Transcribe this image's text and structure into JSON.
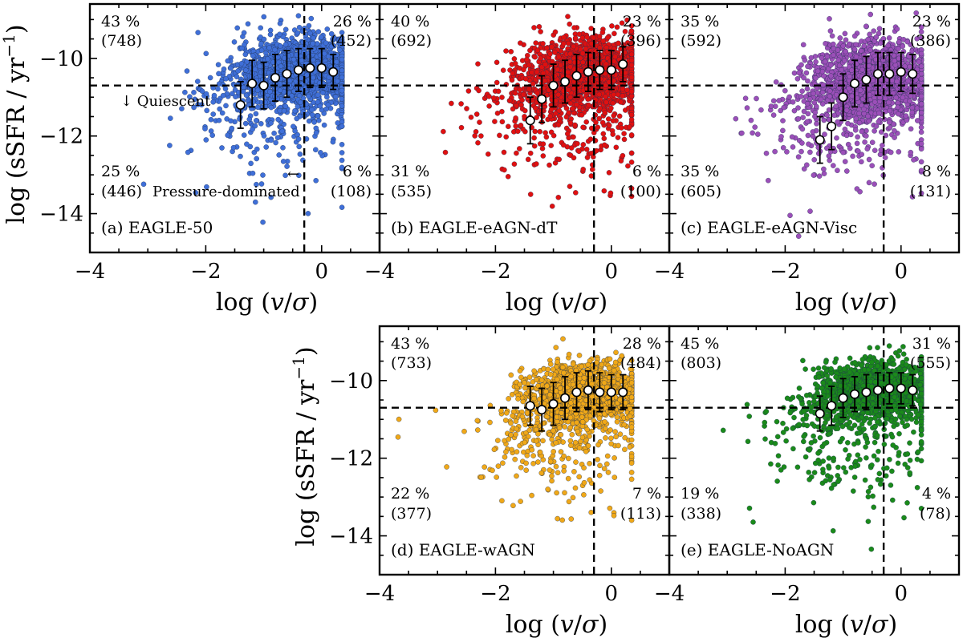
{
  "chart_data": [
    {
      "type": "scatter",
      "panel_label": "(a) EAGLE-50",
      "color": "#3f6fd8",
      "n_points": 1754,
      "xlabel": "log (v/σ)",
      "ylabel": "log (sSFR / yr⁻¹)",
      "xlim": [
        -4,
        1
      ],
      "ylim": [
        -15,
        -8.6
      ],
      "x_ticks": [
        -4,
        -2,
        0
      ],
      "y_ticks": [
        -10,
        -12,
        -14
      ],
      "quiescent_threshold": -10.7,
      "pressure_threshold": -0.3,
      "quadrants": {
        "top_left": {
          "pct": "43 %",
          "count": "(748)"
        },
        "top_right": {
          "pct": "26 %",
          "count": "(452)"
        },
        "bottom_left": {
          "pct": "25 %",
          "count": "(446)"
        },
        "bottom_right": {
          "pct": "6 %",
          "count": "(108)"
        }
      },
      "annotations": {
        "quiescent": "↓ Quiescent",
        "pressure": "← Pressure-dominated"
      },
      "medians": [
        {
          "x": -1.4,
          "y": -11.2,
          "err": 0.6
        },
        {
          "x": -1.2,
          "y": -10.65,
          "err": 0.6
        },
        {
          "x": -1.0,
          "y": -10.7,
          "err": 0.6
        },
        {
          "x": -0.8,
          "y": -10.5,
          "err": 0.6
        },
        {
          "x": -0.6,
          "y": -10.4,
          "err": 0.6
        },
        {
          "x": -0.4,
          "y": -10.3,
          "err": 0.55
        },
        {
          "x": -0.2,
          "y": -10.25,
          "err": 0.5
        },
        {
          "x": 0.0,
          "y": -10.25,
          "err": 0.5
        },
        {
          "x": 0.2,
          "y": -10.35,
          "err": 0.45
        }
      ],
      "cloud": {
        "x_center": -0.4,
        "x_spread": 0.55,
        "y_center": -10.25,
        "y_spread": 0.5
      }
    },
    {
      "type": "scatter",
      "panel_label": "(b) EAGLE-eAGN-dT",
      "color": "#e01010",
      "n_points": 1723,
      "xlabel": "log (v/σ)",
      "ylabel": "",
      "xlim": [
        -4,
        1
      ],
      "ylim": [
        -15,
        -8.6
      ],
      "x_ticks": [
        -4,
        -2,
        0
      ],
      "y_ticks": [
        -10,
        -12,
        -14
      ],
      "quiescent_threshold": -10.7,
      "pressure_threshold": -0.3,
      "quadrants": {
        "top_left": {
          "pct": "40 %",
          "count": "(692)"
        },
        "top_right": {
          "pct": "23 %",
          "count": "(396)"
        },
        "bottom_left": {
          "pct": "31 %",
          "count": "(535)"
        },
        "bottom_right": {
          "pct": "6 %",
          "count": "(100)"
        }
      },
      "medians": [
        {
          "x": -1.4,
          "y": -11.6,
          "err": 0.6
        },
        {
          "x": -1.2,
          "y": -11.05,
          "err": 0.6
        },
        {
          "x": -1.0,
          "y": -10.7,
          "err": 0.55
        },
        {
          "x": -0.8,
          "y": -10.6,
          "err": 0.55
        },
        {
          "x": -0.6,
          "y": -10.45,
          "err": 0.55
        },
        {
          "x": -0.4,
          "y": -10.35,
          "err": 0.5
        },
        {
          "x": -0.2,
          "y": -10.3,
          "err": 0.5
        },
        {
          "x": 0.0,
          "y": -10.3,
          "err": 0.5
        },
        {
          "x": 0.2,
          "y": -10.15,
          "err": 0.45
        }
      ],
      "cloud": {
        "x_center": -0.5,
        "x_spread": 0.55,
        "y_center": -10.35,
        "y_spread": 0.55
      }
    },
    {
      "type": "scatter",
      "panel_label": "(c) EAGLE-eAGN-Visc",
      "color": "#9b4fb8",
      "n_points": 1714,
      "xlabel": "log (v/σ)",
      "ylabel": "",
      "xlim": [
        -4,
        1
      ],
      "ylim": [
        -15,
        -8.6
      ],
      "x_ticks": [
        -4,
        -2,
        0
      ],
      "y_ticks": [
        -10,
        -12,
        -14
      ],
      "quiescent_threshold": -10.7,
      "pressure_threshold": -0.3,
      "quadrants": {
        "top_left": {
          "pct": "35 %",
          "count": "(592)"
        },
        "top_right": {
          "pct": "23 %",
          "count": "(386)"
        },
        "bottom_left": {
          "pct": "35 %",
          "count": "(605)"
        },
        "bottom_right": {
          "pct": "8 %",
          "count": "(131)"
        }
      },
      "medians": [
        {
          "x": -1.4,
          "y": -12.1,
          "err": 0.6
        },
        {
          "x": -1.2,
          "y": -11.75,
          "err": 0.6
        },
        {
          "x": -1.0,
          "y": -11.0,
          "err": 0.6
        },
        {
          "x": -0.8,
          "y": -10.65,
          "err": 0.6
        },
        {
          "x": -0.6,
          "y": -10.55,
          "err": 0.6
        },
        {
          "x": -0.4,
          "y": -10.4,
          "err": 0.55
        },
        {
          "x": -0.2,
          "y": -10.4,
          "err": 0.55
        },
        {
          "x": 0.0,
          "y": -10.35,
          "err": 0.5
        },
        {
          "x": 0.2,
          "y": -10.4,
          "err": 0.5
        }
      ],
      "cloud": {
        "x_center": -0.5,
        "x_spread": 0.55,
        "y_center": -10.5,
        "y_spread": 0.6
      }
    },
    {
      "type": "scatter",
      "panel_label": "(d) EAGLE-wAGN",
      "color": "#f0a818",
      "n_points": 1707,
      "xlabel": "log (v/σ)",
      "ylabel": "log (sSFR / yr⁻¹)",
      "xlim": [
        -4,
        1
      ],
      "ylim": [
        -15,
        -8.6
      ],
      "x_ticks": [
        -4,
        -2,
        0
      ],
      "y_ticks": [
        -10,
        -12,
        -14
      ],
      "quiescent_threshold": -10.7,
      "pressure_threshold": -0.3,
      "quadrants": {
        "top_left": {
          "pct": "43 %",
          "count": "(733)"
        },
        "top_right": {
          "pct": "28 %",
          "count": "(484)"
        },
        "bottom_left": {
          "pct": "22 %",
          "count": "(377)"
        },
        "bottom_right": {
          "pct": "7 %",
          "count": "(113)"
        }
      },
      "medians": [
        {
          "x": -1.4,
          "y": -10.65,
          "err": 0.5
        },
        {
          "x": -1.2,
          "y": -10.75,
          "err": 0.55
        },
        {
          "x": -1.0,
          "y": -10.6,
          "err": 0.55
        },
        {
          "x": -0.8,
          "y": -10.45,
          "err": 0.55
        },
        {
          "x": -0.6,
          "y": -10.3,
          "err": 0.5
        },
        {
          "x": -0.4,
          "y": -10.25,
          "err": 0.5
        },
        {
          "x": -0.2,
          "y": -10.3,
          "err": 0.5
        },
        {
          "x": 0.0,
          "y": -10.3,
          "err": 0.45
        },
        {
          "x": 0.2,
          "y": -10.3,
          "err": 0.45
        }
      ],
      "cloud": {
        "x_center": -0.5,
        "x_spread": 0.5,
        "y_center": -10.3,
        "y_spread": 0.45
      }
    },
    {
      "type": "scatter",
      "panel_label": "(e) EAGLE-NoAGN",
      "color": "#1a8a1a",
      "n_points": 1774,
      "xlabel": "log (v/σ)",
      "ylabel": "",
      "xlim": [
        -4,
        1
      ],
      "ylim": [
        -15,
        -8.6
      ],
      "x_ticks": [
        -4,
        -2,
        0
      ],
      "y_ticks": [
        -10,
        -12,
        -14
      ],
      "quiescent_threshold": -10.7,
      "pressure_threshold": -0.3,
      "quadrants": {
        "top_left": {
          "pct": "45 %",
          "count": "(803)"
        },
        "top_right": {
          "pct": "31 %",
          "count": "(555)"
        },
        "bottom_left": {
          "pct": "19 %",
          "count": "(338)"
        },
        "bottom_right": {
          "pct": "4 %",
          "count": "(78)"
        }
      },
      "medians": [
        {
          "x": -1.4,
          "y": -10.85,
          "err": 0.45
        },
        {
          "x": -1.2,
          "y": -10.65,
          "err": 0.5
        },
        {
          "x": -1.0,
          "y": -10.45,
          "err": 0.5
        },
        {
          "x": -0.8,
          "y": -10.35,
          "err": 0.45
        },
        {
          "x": -0.6,
          "y": -10.3,
          "err": 0.45
        },
        {
          "x": -0.4,
          "y": -10.25,
          "err": 0.45
        },
        {
          "x": -0.2,
          "y": -10.2,
          "err": 0.4
        },
        {
          "x": 0.0,
          "y": -10.2,
          "err": 0.4
        },
        {
          "x": 0.2,
          "y": -10.25,
          "err": 0.4
        }
      ],
      "cloud": {
        "x_center": -0.45,
        "x_spread": 0.5,
        "y_center": -10.2,
        "y_spread": 0.4
      }
    }
  ]
}
